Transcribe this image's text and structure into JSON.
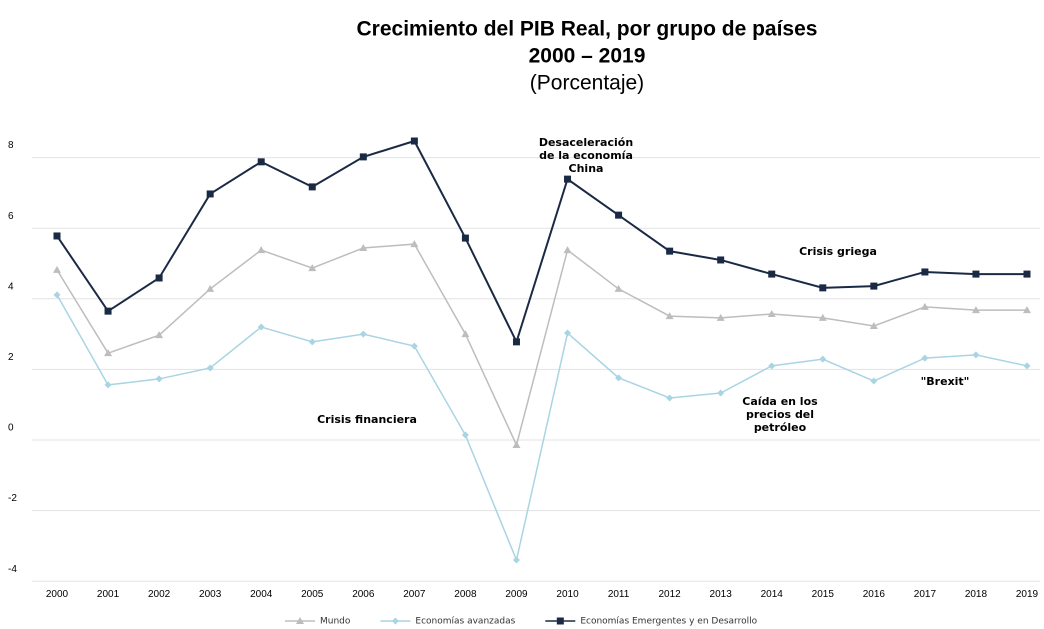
{
  "chart_data": {
    "type": "line",
    "title": "Crecimiento del PIB Real, por grupo de países",
    "subtitle": "2000 – 2019",
    "unit_label": "(Porcentaje)",
    "categories": [
      "2000",
      "2001",
      "2002",
      "2003",
      "2004",
      "2005",
      "2006",
      "2007",
      "2008",
      "2009",
      "2010",
      "2011",
      "2012",
      "2013",
      "2014",
      "2015",
      "2016",
      "2017",
      "2018",
      "2019"
    ],
    "series": [
      {
        "name": "Mundo",
        "color": "#bdbdbd",
        "marker": "triangle",
        "values": [
          4.82,
          2.46,
          2.97,
          4.28,
          5.38,
          4.87,
          5.44,
          5.55,
          3.0,
          -0.14,
          5.38,
          4.28,
          3.51,
          3.46,
          3.57,
          3.46,
          3.23,
          3.77,
          3.68,
          3.68
        ]
      },
      {
        "name": "Economías avanzadas",
        "color": "#a9d4e3",
        "marker": "diamond",
        "values": [
          4.11,
          1.56,
          1.73,
          2.04,
          3.2,
          2.78,
          3.0,
          2.66,
          0.14,
          -3.4,
          3.03,
          1.76,
          1.19,
          1.33,
          2.1,
          2.29,
          1.67,
          2.32,
          2.41,
          2.1
        ]
      },
      {
        "name": "Economías Emergentes y en Desarrollo",
        "color": "#1b2a44",
        "marker": "square",
        "values": [
          5.78,
          3.65,
          4.59,
          6.97,
          7.88,
          7.17,
          8.02,
          8.47,
          5.72,
          2.78,
          7.39,
          6.37,
          5.35,
          5.1,
          4.7,
          4.31,
          4.36,
          4.76,
          4.7,
          4.7
        ]
      }
    ],
    "annotations": [
      {
        "lines": [
          "Desaceleración",
          "de la economía",
          "China"
        ]
      },
      {
        "lines": [
          "Crisis griega"
        ]
      },
      {
        "lines": [
          "Crisis financiera"
        ]
      },
      {
        "lines": [
          "Caída en los",
          "precios del",
          "petróleo"
        ]
      },
      {
        "lines": [
          "\"Brexit\""
        ]
      }
    ],
    "ylim": [
      -4,
      9
    ],
    "yticks": [
      -4,
      -2,
      0,
      2,
      4,
      6,
      8
    ],
    "grid": true,
    "legend": "bottom"
  }
}
